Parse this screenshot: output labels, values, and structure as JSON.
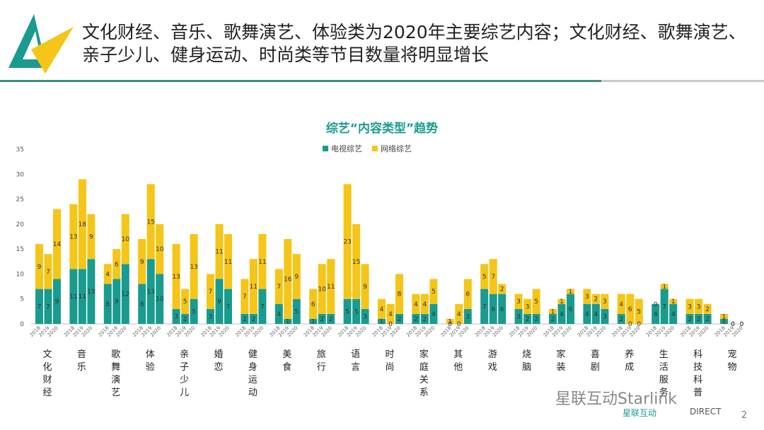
{
  "slide": {
    "title": "文化财经、音乐、歌舞演艺、体验类为2020年主要综艺内容；文化财经、歌舞演艺、亲子少儿、健身运动、时尚类等节目数量将明显增长",
    "page_number": "2",
    "watermark": "星联互动Starlink",
    "brand_left": "星联互动",
    "brand_right": "DIRECT",
    "colors": {
      "accent_green": "#1a9b8f",
      "accent_yellow": "#f5c518",
      "rule_green": "#3a8f7d"
    }
  },
  "chart_data": {
    "type": "bar",
    "stacked": true,
    "title": "综艺“内容类型”趋势",
    "ylim": [
      0,
      35
    ],
    "yticks": [
      0,
      5,
      10,
      15,
      20,
      25,
      30,
      35
    ],
    "years": [
      "2018",
      "2019",
      "2020"
    ],
    "legend_position": "top-center",
    "categories": [
      "文化财经",
      "音乐",
      "歌舞演艺",
      "体验",
      "亲子少儿",
      "婚恋",
      "健身运动",
      "美食",
      "旅行",
      "语言",
      "时尚",
      "家庭关系",
      "其他",
      "游戏",
      "烧脑",
      "家装",
      "喜剧",
      "养成",
      "生活服务",
      "科技科普",
      "宠物"
    ],
    "series": [
      {
        "name": "电视综艺",
        "color": "#1a9b8f",
        "values": [
          [
            7,
            7,
            9
          ],
          [
            11,
            11,
            13
          ],
          [
            8,
            9,
            12
          ],
          [
            8,
            13,
            10
          ],
          [
            3,
            2,
            5
          ],
          [
            3,
            9,
            7
          ],
          [
            2,
            2,
            7
          ],
          [
            4,
            1,
            5
          ],
          [
            1,
            2,
            2
          ],
          [
            5,
            5,
            3
          ],
          [
            1,
            0,
            2
          ],
          [
            2,
            2,
            4
          ],
          [
            0,
            0,
            3
          ],
          [
            7,
            6,
            6
          ],
          [
            3,
            2,
            2
          ],
          [
            2,
            4,
            6
          ],
          [
            4,
            4,
            3
          ],
          [
            2,
            0,
            0
          ],
          [
            4,
            7,
            4
          ],
          [
            2,
            2,
            2
          ],
          [
            1,
            0,
            0
          ]
        ]
      },
      {
        "name": "网络综艺",
        "color": "#f5c518",
        "values": [
          [
            9,
            7,
            14
          ],
          [
            13,
            18,
            9
          ],
          [
            4,
            6,
            10
          ],
          [
            9,
            15,
            10
          ],
          [
            13,
            5,
            13
          ],
          [
            7,
            11,
            11
          ],
          [
            7,
            11,
            11
          ],
          [
            7,
            16,
            9
          ],
          [
            6,
            10,
            11
          ],
          [
            23,
            15,
            9
          ],
          [
            4,
            4,
            8
          ],
          [
            4,
            4,
            5
          ],
          [
            1,
            4,
            6
          ],
          [
            5,
            7,
            2
          ],
          [
            3,
            3,
            5
          ],
          [
            1,
            1,
            1
          ],
          [
            3,
            2,
            3
          ],
          [
            4,
            6,
            5
          ],
          [
            0,
            1,
            1
          ],
          [
            3,
            3,
            2
          ],
          [
            1,
            0,
            0
          ]
        ]
      }
    ]
  }
}
